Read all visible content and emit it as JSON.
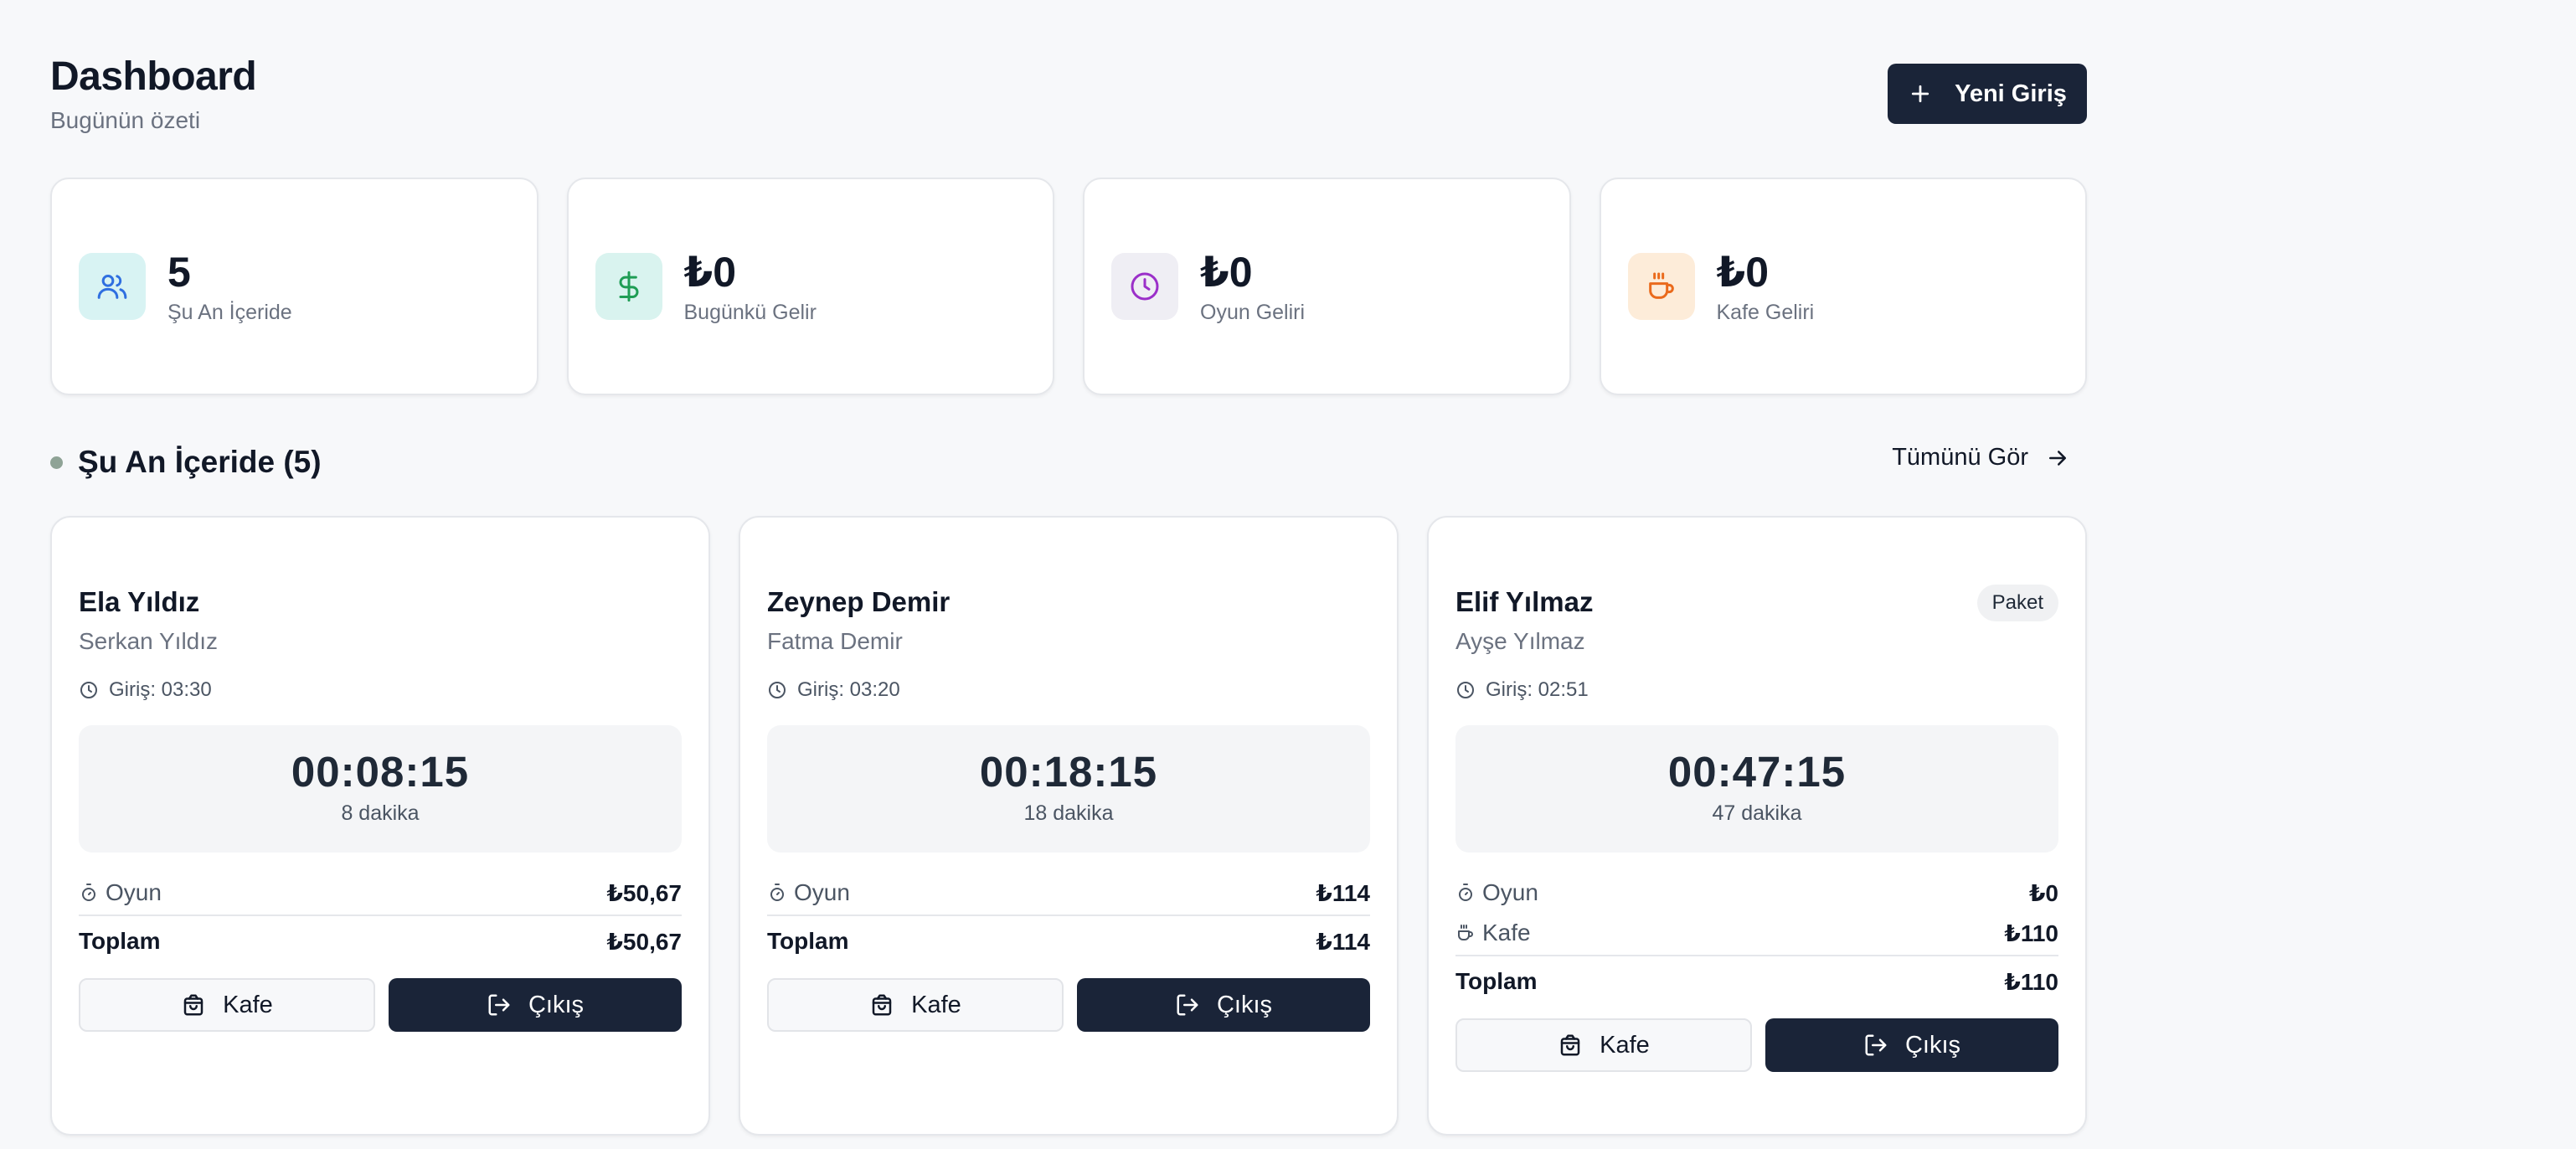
{
  "header": {
    "title": "Dashboard",
    "subtitle": "Bugünün özeti",
    "new_entry_label": "Yeni Giriş"
  },
  "stats": [
    {
      "value": "5",
      "label": "Şu An İçeride",
      "icon": "users-icon",
      "color": "#2f6fe0",
      "bg": "#d8f3f3"
    },
    {
      "value": "₺0",
      "label": "Bugünkü Gelir",
      "icon": "dollar-icon",
      "color": "#1f9d55",
      "bg": "#d9f3ef"
    },
    {
      "value": "₺0",
      "label": "Oyun Geliri",
      "icon": "clock-icon",
      "color": "#9b2fc9",
      "bg": "#efeef4"
    },
    {
      "value": "₺0",
      "label": "Kafe Geliri",
      "icon": "coffee-icon",
      "color": "#ea6a1c",
      "bg": "#fdecd9"
    }
  ],
  "section": {
    "title": "Şu An İçeride (5)",
    "see_all_label": "Tümünü Gör"
  },
  "sessions": [
    {
      "child": "Ela Yıldız",
      "parent": "Serkan Yıldız",
      "badge": "",
      "entry": "Giriş: 03:30",
      "timer": "00:08:15",
      "minutes": "8 dakika",
      "game_label": "Oyun",
      "game_value": "₺50,67",
      "cafe_label": "",
      "cafe_value": "",
      "total_label": "Toplam",
      "total_value": "₺50,67",
      "cafe_btn": "Kafe",
      "exit_btn": "Çıkış"
    },
    {
      "child": "Zeynep Demir",
      "parent": "Fatma Demir",
      "badge": "",
      "entry": "Giriş: 03:20",
      "timer": "00:18:15",
      "minutes": "18 dakika",
      "game_label": "Oyun",
      "game_value": "₺114",
      "cafe_label": "",
      "cafe_value": "",
      "total_label": "Toplam",
      "total_value": "₺114",
      "cafe_btn": "Kafe",
      "exit_btn": "Çıkış"
    },
    {
      "child": "Elif Yılmaz",
      "parent": "Ayşe Yılmaz",
      "badge": "Paket",
      "entry": "Giriş: 02:51",
      "timer": "00:47:15",
      "minutes": "47 dakika",
      "game_label": "Oyun",
      "game_value": "₺0",
      "cafe_label": "Kafe",
      "cafe_value": "₺110",
      "total_label": "Toplam",
      "total_value": "₺110",
      "cafe_btn": "Kafe",
      "exit_btn": "Çıkış"
    }
  ]
}
